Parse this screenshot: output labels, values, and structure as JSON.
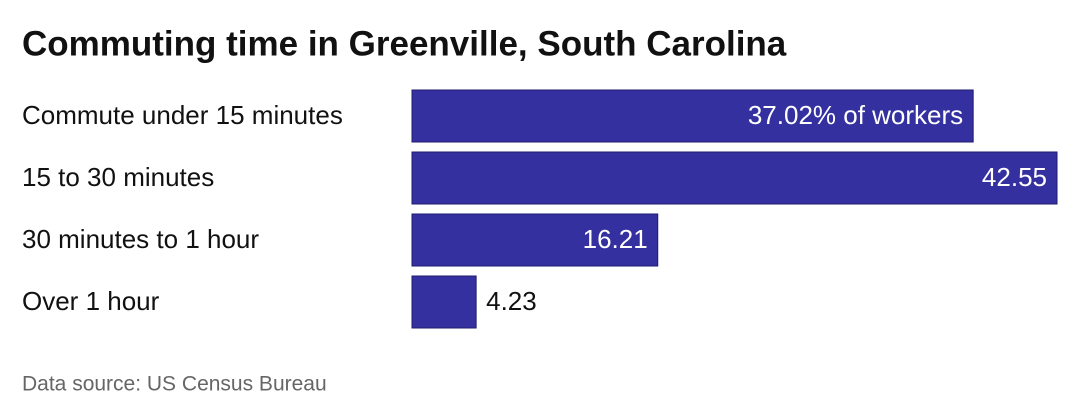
{
  "chart_data": {
    "type": "bar",
    "orientation": "horizontal",
    "title": "Commuting time in Greenville, South Carolina",
    "categories": [
      "Commute under 15 minutes",
      "15 to 30 minutes",
      "30 minutes to 1 hour",
      "Over 1 hour"
    ],
    "values": [
      37.02,
      42.55,
      16.21,
      4.23
    ],
    "value_labels": [
      "37.02% of workers",
      "42.55",
      "16.21",
      "4.23"
    ],
    "color": "#3430a0",
    "source": "Data source: US Census Bureau"
  }
}
